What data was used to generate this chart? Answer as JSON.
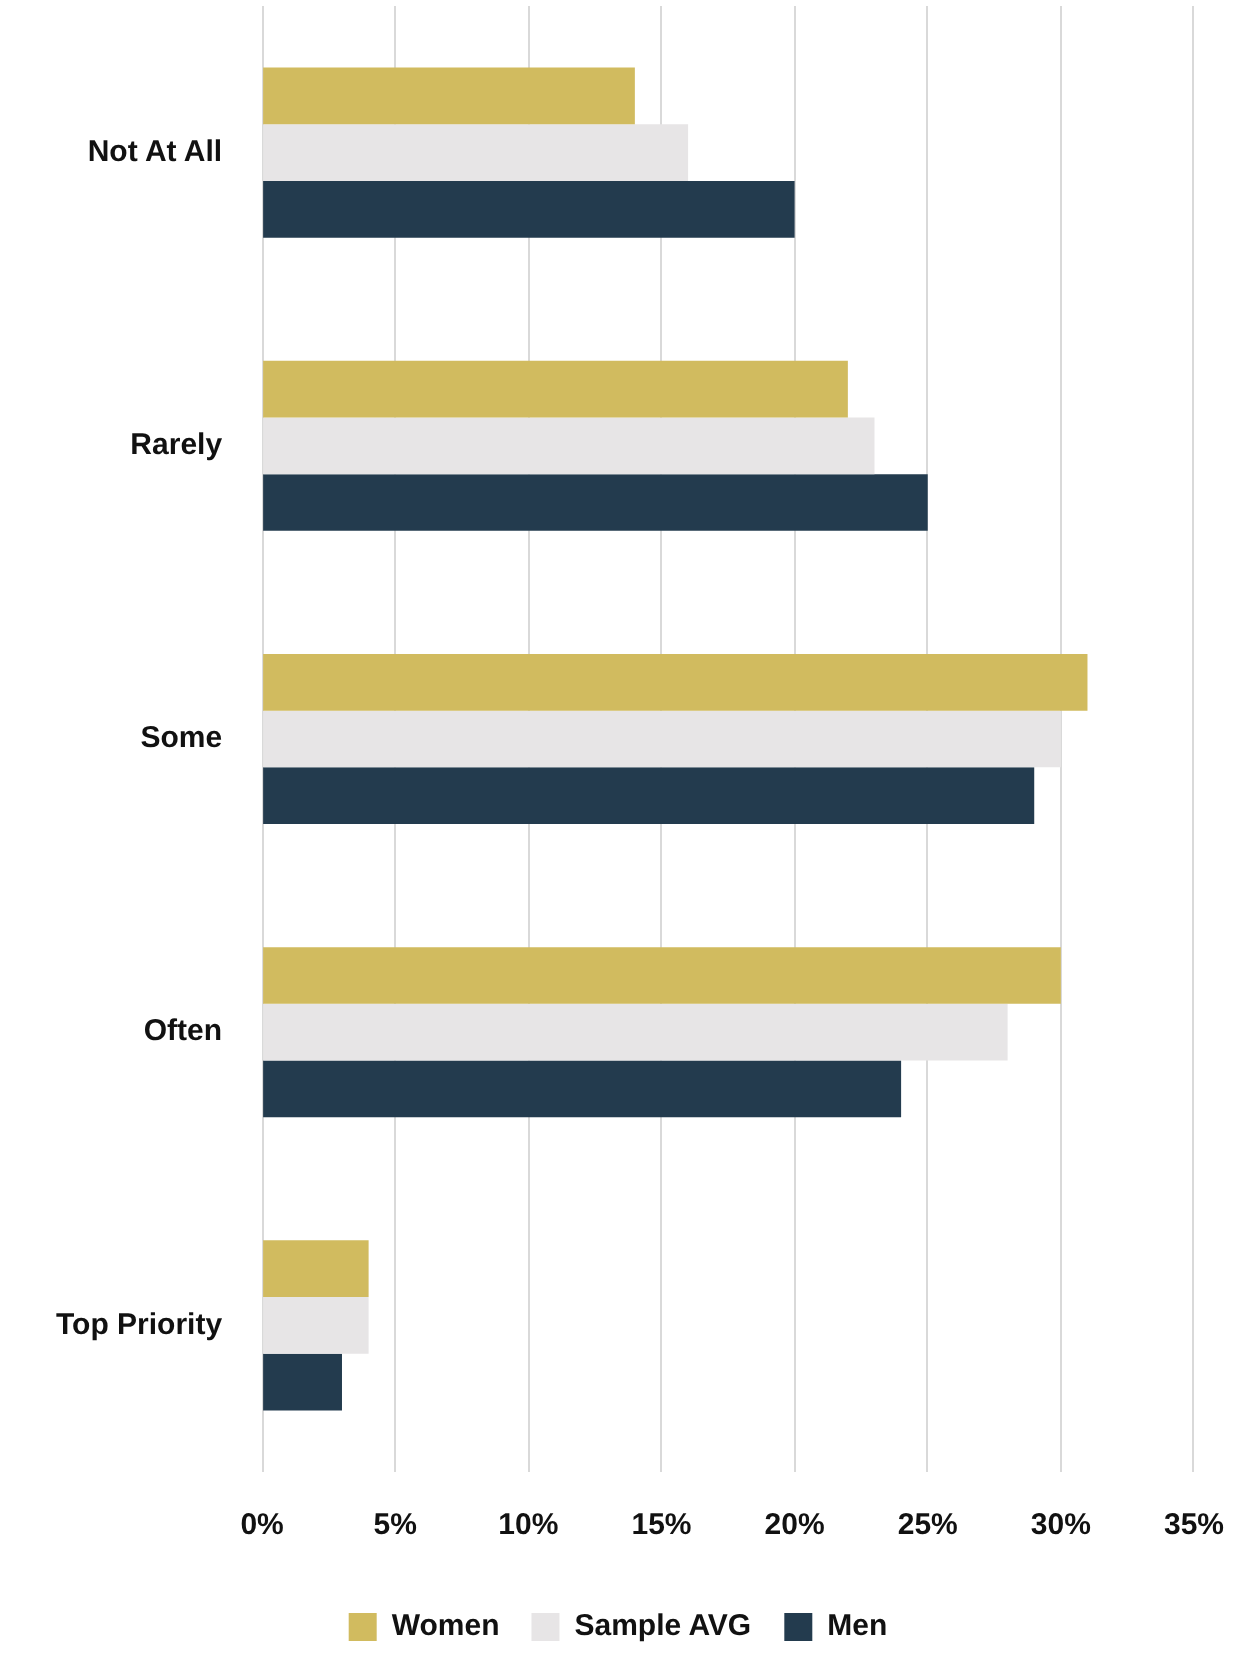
{
  "chart_data": {
    "type": "bar",
    "orientation": "horizontal",
    "categories": [
      "Not At All",
      "Rarely",
      "Some",
      "Often",
      "Top Priority"
    ],
    "series": [
      {
        "name": "Women",
        "color": "#d1bb5f",
        "values": [
          14,
          22,
          31,
          30,
          4
        ]
      },
      {
        "name": "Sample AVG",
        "color": "#e7e5e6",
        "values": [
          16,
          23,
          30,
          28,
          4
        ]
      },
      {
        "name": "Men",
        "color": "#233b4e",
        "values": [
          20,
          25,
          29,
          24,
          3
        ]
      }
    ],
    "xlim": [
      0,
      35
    ],
    "xticks": [
      {
        "value": 0,
        "label": "0%"
      },
      {
        "value": 5,
        "label": "5%"
      },
      {
        "value": 10,
        "label": "10%"
      },
      {
        "value": 15,
        "label": "15%"
      },
      {
        "value": 20,
        "label": "20%"
      },
      {
        "value": 25,
        "label": "25%"
      },
      {
        "value": 30,
        "label": "30%"
      },
      {
        "value": 35,
        "label": "35%"
      }
    ],
    "grid": "x",
    "legend": "bottom"
  }
}
